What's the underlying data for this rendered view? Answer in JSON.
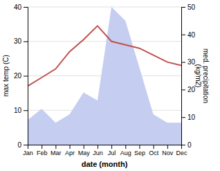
{
  "chart_data": {
    "type": "line",
    "categories": [
      "Jan",
      "Feb",
      "Mar",
      "Apr",
      "May",
      "Jun",
      "Jul",
      "Aug",
      "Sep",
      "Oct",
      "Nov",
      "Dec"
    ],
    "series": [
      {
        "type": "area",
        "axis": "y2",
        "color": "#c5cdf0",
        "values": [
          9,
          13,
          8,
          11,
          19,
          16,
          50,
          45,
          28,
          11,
          8,
          8
        ]
      },
      {
        "type": "line",
        "color": "#c0504d",
        "values": [
          17,
          19.5,
          22,
          27,
          30.5,
          34.5,
          30,
          29,
          28,
          26,
          24,
          23
        ]
      }
    ],
    "x_label": "date (month)",
    "y_label": "max temp (C)",
    "y2_label": "med. precipitation\n(kg/m2)",
    "ylim": [
      0,
      40
    ],
    "yticks": [
      0,
      10,
      20,
      30,
      40
    ],
    "y2lim": [
      0,
      50
    ],
    "y2ticks": [
      0,
      10,
      20,
      30,
      40,
      50
    ],
    "grid": true
  }
}
